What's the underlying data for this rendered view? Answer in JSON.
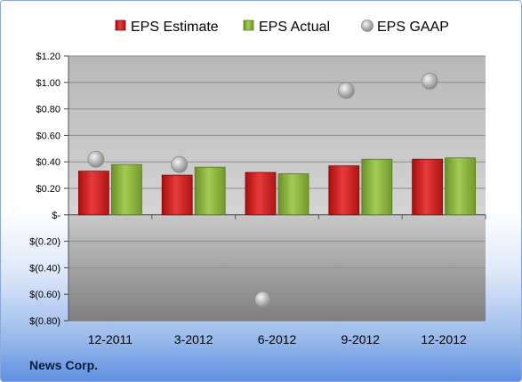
{
  "company": "News Corp.",
  "chart_data": {
    "type": "bar",
    "categories": [
      "12-2011",
      "3-2012",
      "6-2012",
      "9-2012",
      "12-2012"
    ],
    "series": [
      {
        "name": "EPS Estimate",
        "kind": "bar",
        "color": "#d42020",
        "values": [
          0.33,
          0.3,
          0.32,
          0.37,
          0.42
        ]
      },
      {
        "name": "EPS Actual",
        "kind": "bar",
        "color": "#8ab53c",
        "values": [
          0.38,
          0.36,
          0.31,
          0.42,
          0.43
        ]
      },
      {
        "name": "EPS GAAP",
        "kind": "scatter",
        "color": "#b0b0b0",
        "values": [
          0.42,
          0.38,
          -0.64,
          0.94,
          1.01
        ]
      }
    ],
    "ylim": [
      -0.8,
      1.2
    ],
    "yticks": [
      1.2,
      1.0,
      0.8,
      0.6,
      0.4,
      0.2,
      0,
      -0.2,
      -0.4,
      -0.6,
      -0.8
    ],
    "ytick_labels": [
      "$1.20",
      "$1.00",
      "$0.80",
      "$0.60",
      "$0.40",
      "$0.20",
      "$-",
      "$(0.20)",
      "$(0.40)",
      "$(0.60)",
      "$(0.80)"
    ],
    "legend_position": "top",
    "grid": true
  }
}
